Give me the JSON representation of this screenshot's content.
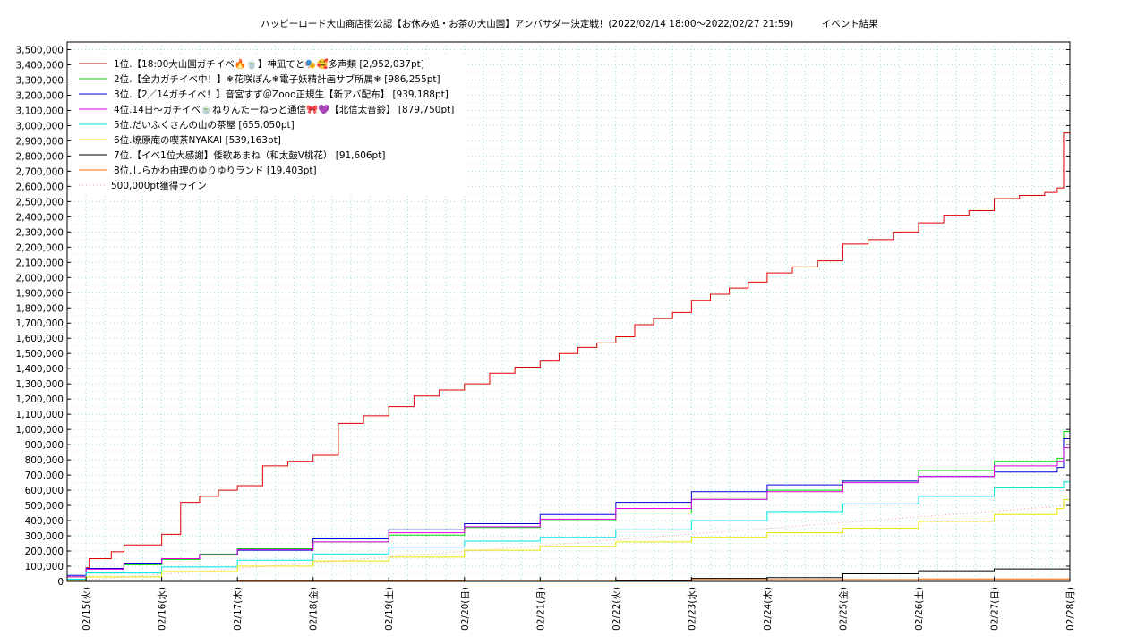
{
  "chart_data": {
    "type": "line",
    "title": "ハッピーロード大山商店街公認【お休み処・お茶の大山園】アンバサダー決定戦！(2022/02/14 18:00～2022/02/27 21:59)　　　イベント結果",
    "xlim": [
      "02/14 18:00",
      "02/28 00:00"
    ],
    "x_ticks": [
      "02/15(火)",
      "02/16(水)",
      "02/17(木)",
      "02/18(金)",
      "02/19(土)",
      "02/20(日)",
      "02/21(月)",
      "02/22(火)",
      "02/23(水)",
      "02/24(木)",
      "02/25(金)",
      "02/26(土)",
      "02/27(日)",
      "02/28(月)"
    ],
    "ylim": [
      0,
      3550000
    ],
    "y_ticks": [
      "0",
      "100,000",
      "200,000",
      "300,000",
      "400,000",
      "500,000",
      "600,000",
      "700,000",
      "800,000",
      "900,000",
      "1,000,000",
      "1,100,000",
      "1,200,000",
      "1,300,000",
      "1,400,000",
      "1,500,000",
      "1,600,000",
      "1,700,000",
      "1,800,000",
      "1,900,000",
      "2,000,000",
      "2,100,000",
      "2,200,000",
      "2,300,000",
      "2,400,000",
      "2,500,000",
      "2,600,000",
      "2,700,000",
      "2,800,000",
      "2,900,000",
      "3,000,000",
      "3,100,000",
      "3,200,000",
      "3,300,000",
      "3,400,000",
      "3,500,000"
    ],
    "grid": true,
    "legend_position": "top-left",
    "series": [
      {
        "name": "1位.【18:00大山園ガチイベ🔥🍵】神凪てと🎭🥰多声類 [2,952,037pt]",
        "color": "#e00000",
        "x": [
          "02/14 18:00",
          "02/15 00:00",
          "02/15 01:00",
          "02/15 08:00",
          "02/15 12:00",
          "02/16 00:00",
          "02/16 06:00",
          "02/16 12:00",
          "02/16 18:00",
          "02/17 00:00",
          "02/17 08:00",
          "02/17 16:00",
          "02/18 00:00",
          "02/18 08:00",
          "02/18 16:00",
          "02/19 00:00",
          "02/19 08:00",
          "02/19 16:00",
          "02/20 00:00",
          "02/20 08:00",
          "02/20 16:00",
          "02/21 00:00",
          "02/21 06:00",
          "02/21 12:00",
          "02/21 18:00",
          "02/22 00:00",
          "02/22 06:00",
          "02/22 12:00",
          "02/22 18:00",
          "02/23 00:00",
          "02/23 06:00",
          "02/23 12:00",
          "02/23 18:00",
          "02/24 00:00",
          "02/24 08:00",
          "02/24 16:00",
          "02/25 00:00",
          "02/25 08:00",
          "02/25 16:00",
          "02/26 00:00",
          "02/26 08:00",
          "02/26 16:00",
          "02/27 00:00",
          "02/27 08:00",
          "02/27 16:00",
          "02/27 20:00",
          "02/27 22:00",
          "02/28 00:00"
        ],
        "y": [
          30000,
          90000,
          150000,
          195000,
          240000,
          310000,
          520000,
          560000,
          600000,
          630000,
          760000,
          790000,
          830000,
          1040000,
          1090000,
          1150000,
          1220000,
          1260000,
          1300000,
          1370000,
          1410000,
          1450000,
          1500000,
          1540000,
          1570000,
          1610000,
          1690000,
          1730000,
          1770000,
          1850000,
          1890000,
          1930000,
          1970000,
          2030000,
          2070000,
          2110000,
          2220000,
          2250000,
          2300000,
          2360000,
          2410000,
          2440000,
          2520000,
          2540000,
          2560000,
          2590000,
          2952037,
          2952037
        ]
      },
      {
        "name": "2位.【全力ガチイベ中！】❄花咲ぽん❄電子妖精計画サブ所属❄ [986,255pt]",
        "color": "#00dd00",
        "x": [
          "02/14 18:00",
          "02/15 00:00",
          "02/15 12:00",
          "02/16 00:00",
          "02/16 12:00",
          "02/17 00:00",
          "02/18 00:00",
          "02/19 00:00",
          "02/20 00:00",
          "02/21 00:00",
          "02/22 00:00",
          "02/23 00:00",
          "02/24 00:00",
          "02/25 00:00",
          "02/26 00:00",
          "02/27 00:00",
          "02/27 20:00",
          "02/27 22:00",
          "02/28 00:00"
        ],
        "y": [
          30000,
          60000,
          110000,
          145000,
          180000,
          215000,
          260000,
          305000,
          355000,
          400000,
          450000,
          540000,
          600000,
          660000,
          730000,
          790000,
          810000,
          986255,
          986255
        ]
      },
      {
        "name": "3位.【2／14ガチイベ！】音宮すず＠Zooo正規生【新アバ配布】 [939,188pt]",
        "color": "#0000dd",
        "x": [
          "02/14 18:00",
          "02/15 00:00",
          "02/15 12:00",
          "02/16 00:00",
          "02/16 12:00",
          "02/17 00:00",
          "02/18 00:00",
          "02/19 00:00",
          "02/20 00:00",
          "02/21 00:00",
          "02/22 00:00",
          "02/23 00:00",
          "02/24 00:00",
          "02/25 00:00",
          "02/26 00:00",
          "02/27 00:00",
          "02/27 20:00",
          "02/27 22:00",
          "02/28 00:00"
        ],
        "y": [
          40000,
          85000,
          115000,
          150000,
          175000,
          205000,
          280000,
          340000,
          380000,
          440000,
          520000,
          590000,
          635000,
          660000,
          690000,
          720000,
          750000,
          939188,
          939188
        ]
      },
      {
        "name": "4位.14日〜ガチイベ🍵ねりんたーねっと通信🎀💜【北信太音鈴】 [879,750pt]",
        "color": "#dd00dd",
        "x": [
          "02/14 18:00",
          "02/15 00:00",
          "02/15 12:00",
          "02/16 00:00",
          "02/16 12:00",
          "02/17 00:00",
          "02/18 00:00",
          "02/19 00:00",
          "02/20 00:00",
          "02/21 00:00",
          "02/22 00:00",
          "02/23 00:00",
          "02/24 00:00",
          "02/25 00:00",
          "02/26 00:00",
          "02/27 00:00",
          "02/27 20:00",
          "02/27 22:00",
          "02/28 00:00"
        ],
        "y": [
          30000,
          80000,
          120000,
          150000,
          175000,
          210000,
          260000,
          320000,
          360000,
          410000,
          480000,
          540000,
          590000,
          650000,
          690000,
          760000,
          790000,
          879750,
          879750
        ]
      },
      {
        "name": "5位.だいふくさんの山の茶屋 [655,050pt]",
        "color": "#00e5e5",
        "x": [
          "02/14 18:00",
          "02/15 00:00",
          "02/16 00:00",
          "02/17 00:00",
          "02/18 00:00",
          "02/19 00:00",
          "02/20 00:00",
          "02/21 00:00",
          "02/22 00:00",
          "02/23 00:00",
          "02/24 00:00",
          "02/25 00:00",
          "02/26 00:00",
          "02/27 00:00",
          "02/27 22:00",
          "02/28 00:00"
        ],
        "y": [
          15000,
          55000,
          95000,
          140000,
          180000,
          225000,
          265000,
          290000,
          340000,
          400000,
          460000,
          510000,
          560000,
          615000,
          655050,
          655050
        ]
      },
      {
        "name": "6位.燎原庵の喫茶NYAKAI [539,163pt]",
        "color": "#e8e800",
        "x": [
          "02/14 18:00",
          "02/15 00:00",
          "02/16 00:00",
          "02/17 00:00",
          "02/18 00:00",
          "02/19 00:00",
          "02/20 00:00",
          "02/21 00:00",
          "02/22 00:00",
          "02/23 00:00",
          "02/24 00:00",
          "02/25 00:00",
          "02/26 00:00",
          "02/27 00:00",
          "02/27 20:00",
          "02/27 22:00",
          "02/28 00:00"
        ],
        "y": [
          5000,
          30000,
          65000,
          100000,
          135000,
          160000,
          205000,
          230000,
          260000,
          290000,
          320000,
          350000,
          395000,
          440000,
          480000,
          539163,
          539163
        ]
      },
      {
        "name": "7位.【イベ1位大感謝】倭歌あまね（和太鼓V桃花） [91,606pt]",
        "color": "#000000",
        "x": [
          "02/14 18:00",
          "02/22 00:00",
          "02/23 00:00",
          "02/24 00:00",
          "02/25 00:00",
          "02/26 00:00",
          "02/27 00:00",
          "02/28 00:00"
        ],
        "y": [
          0,
          5000,
          20000,
          25000,
          50000,
          70000,
          82000,
          91606
        ]
      },
      {
        "name": "8位.しらかわ由理のゆりゆりランド [19,403pt]",
        "color": "#ff6600",
        "x": [
          "02/14 18:00",
          "02/17 00:00",
          "02/20 00:00",
          "02/23 00:00",
          "02/26 00:00",
          "02/28 00:00"
        ],
        "y": [
          0,
          5000,
          8000,
          12000,
          16000,
          19403
        ]
      },
      {
        "name": "500,000pt獲得ライン",
        "color": "#ff9a9a",
        "dashed": true,
        "x": [
          "02/14 18:00",
          "02/28 00:00"
        ],
        "y": [
          0,
          500000
        ]
      }
    ]
  }
}
